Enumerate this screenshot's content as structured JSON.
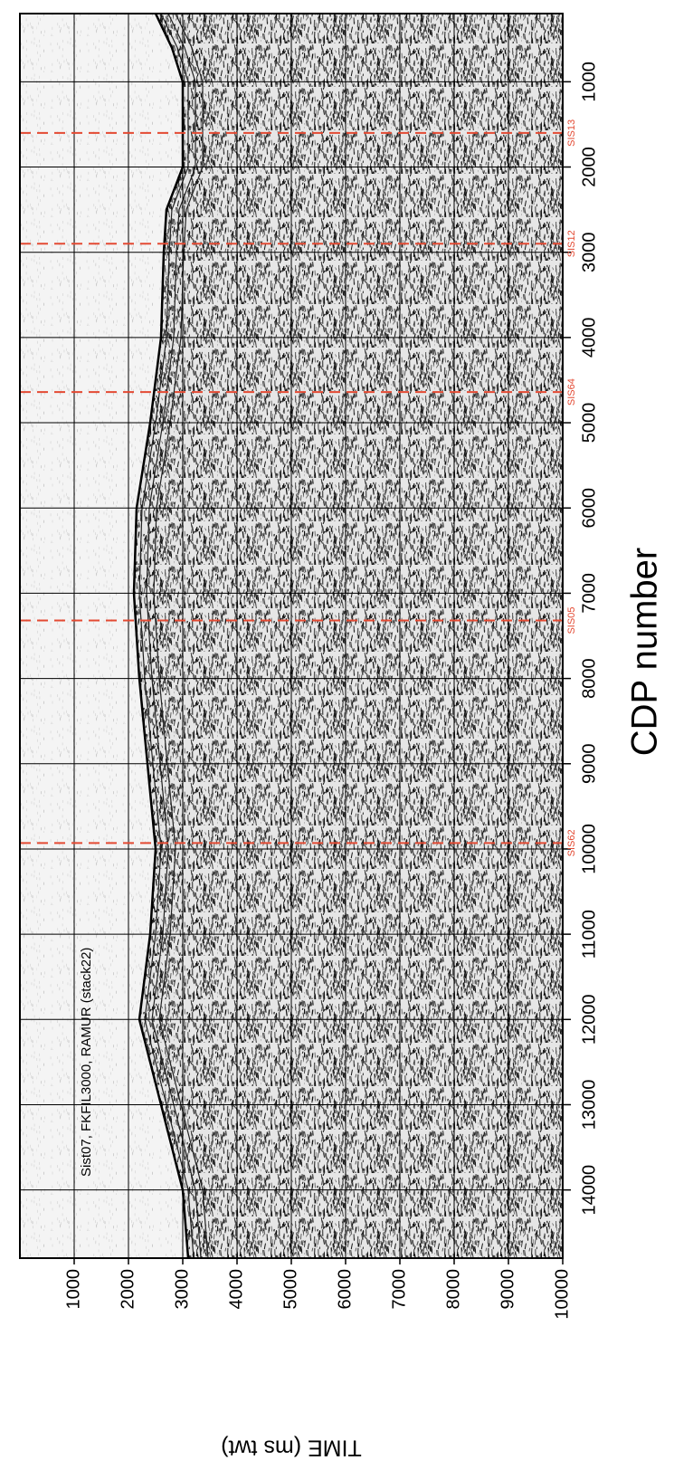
{
  "chart_data": {
    "type": "line",
    "title": "CDP number",
    "y_label": "TIME (ms twt)",
    "annotation": "Sist07, FKFIL3000, RAMUR (stack22)",
    "xlim": [
      200,
      14800
    ],
    "xticks": [
      1000,
      2000,
      3000,
      4000,
      5000,
      6000,
      7000,
      8000,
      9000,
      10000,
      11000,
      12000,
      13000,
      14000
    ],
    "ylim": [
      0,
      10000
    ],
    "yticks": [
      1000,
      2000,
      3000,
      4000,
      5000,
      6000,
      7000,
      8000,
      9000,
      10000
    ],
    "x": [
      200,
      600,
      1000,
      1500,
      2000,
      2500,
      3000,
      4000,
      5000,
      6000,
      7000,
      8000,
      9000,
      10000,
      11000,
      12000,
      13000,
      14000,
      14800
    ],
    "values": [
      2500,
      2800,
      3000,
      3000,
      3000,
      2700,
      2650,
      2600,
      2400,
      2150,
      2100,
      2200,
      2350,
      2500,
      2400,
      2200,
      2600,
      3000,
      3100
    ],
    "color": "#000000",
    "grid": true,
    "markers": [
      {
        "label": "SIS13",
        "value": 1600
      },
      {
        "label": "SIS12",
        "value": 2900
      },
      {
        "label": "SIS64",
        "value": 4640
      },
      {
        "label": "SIS05",
        "value": 7320
      },
      {
        "label": "SIS62",
        "value": 9930
      }
    ],
    "marker_color": "#e34a33"
  }
}
